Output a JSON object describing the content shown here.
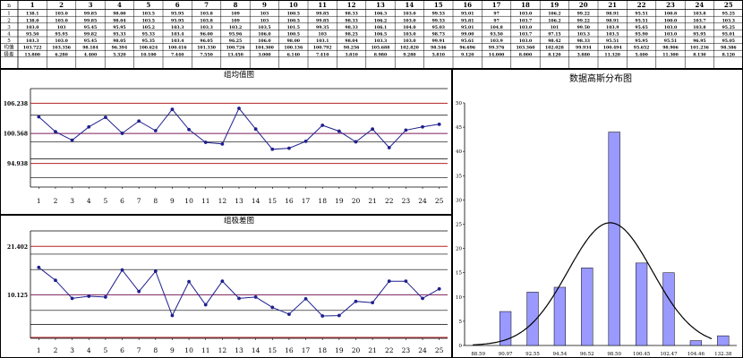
{
  "table": {
    "corner": "n",
    "columns": [
      "1",
      "2",
      "3",
      "4",
      "5",
      "6",
      "7",
      "8",
      "9",
      "10",
      "11",
      "12",
      "13",
      "14",
      "15",
      "16",
      "17",
      "18",
      "19",
      "20",
      "21",
      "22",
      "23",
      "24",
      "25"
    ],
    "row_labels": [
      "1",
      "2",
      "3",
      "4",
      "5",
      "均值",
      "极差"
    ],
    "rows": [
      [
        "138.1",
        "103.0",
        "99.85",
        "98.00",
        "103.5",
        "95.95",
        "103.8",
        "109",
        "103",
        "100.5",
        "99.85",
        "98.33",
        "106.3",
        "103.0",
        "99.53",
        "95.01",
        "97",
        "103.0",
        "106.2",
        "99.22",
        "98.91",
        "95.51",
        "100.8",
        "103.8",
        "95.25"
      ],
      [
        "138.0",
        "103.0",
        "99.85",
        "98.04",
        "103.5",
        "95.95",
        "103.8",
        "109",
        "103",
        "100.5",
        "99.85",
        "98.33",
        "106.2",
        "103.0",
        "99.53",
        "95.81",
        "97",
        "103.7",
        "106.2",
        "99.22",
        "98.91",
        "95.51",
        "100.0",
        "103.7",
        "103.3"
      ],
      [
        "103.0",
        "103",
        "95.45",
        "95.95",
        "105.2",
        "103.3",
        "103.3",
        "103.2",
        "103.5",
        "101.5",
        "99.35",
        "98.33",
        "106.1",
        "104.0",
        "95.03",
        "95.01",
        "104.8",
        "103.0",
        "101",
        "99.50",
        "103.9",
        "95.65",
        "103.0",
        "103.8",
        "95.25"
      ],
      [
        "95.50",
        "95.95",
        "99.82",
        "95.33",
        "95.33",
        "103.4",
        "96.00",
        "95.96",
        "106.0",
        "100.5",
        "103",
        "98.25",
        "106.5",
        "103.0",
        "98.73",
        "99.00",
        "93.50",
        "103.7",
        "97.15",
        "103.3",
        "103.5",
        "95.90",
        "103.0",
        "95.95",
        "95.01"
      ],
      [
        "103.3",
        "103.0",
        "95.45",
        "98.05",
        "95.35",
        "103.4",
        "96.05",
        "96.25",
        "106.0",
        "98.00",
        "103.1",
        "98.04",
        "103.3",
        "103.0",
        "99.91",
        "95.61",
        "103.9",
        "103.0",
        "98.42",
        "98.33",
        "95.51",
        "95.95",
        "95.51",
        "96.95",
        "95.05"
      ],
      [
        "103.722",
        "103.356",
        "98.184",
        "96.394",
        "100.624",
        "100.416",
        "101.330",
        "100.726",
        "104.300",
        "100.136",
        "100.792",
        "98.256",
        "105.688",
        "102.820",
        "98.546",
        "96.696",
        "99.376",
        "103.360",
        "102.028",
        "99.934",
        "100.494",
        "95.652",
        "98.906",
        "101.236",
        "98.386"
      ],
      [
        "13.800",
        "6.280",
        "4.400",
        "5.320",
        "10.100",
        "7.440",
        "7.550",
        "13.450",
        "3.000",
        "6.140",
        "7.410",
        "3.810",
        "8.980",
        "9.280",
        "5.810",
        "9.120",
        "14.000",
        "8.000",
        "8.120",
        "3.880",
        "11.320",
        "5.400",
        "11.300",
        "8.130",
        "8.120"
      ]
    ]
  },
  "xbar_chart": {
    "title": "组均值图",
    "ucl_label": "106.238",
    "cl_label": "100.568",
    "lcl_label": "94.938",
    "ucl": 106.238,
    "cl": 100.568,
    "lcl": 94.938,
    "ylim": [
      90.5,
      109.0
    ],
    "x_ticks": [
      "1",
      "2",
      "3",
      "4",
      "5",
      "6",
      "7",
      "8",
      "9",
      "10",
      "11",
      "12",
      "13",
      "14",
      "15",
      "16",
      "17",
      "18",
      "19",
      "20",
      "21",
      "22",
      "23",
      "24",
      "25"
    ],
    "values": [
      103.7,
      100.9,
      99.3,
      101.8,
      103.6,
      100.6,
      102.9,
      101.1,
      105.1,
      101.3,
      98.9,
      98.6,
      105.3,
      101.4,
      97.6,
      97.8,
      99.1,
      102.1,
      101.0,
      99.0,
      101.4,
      97.9,
      101.2,
      101.8,
      102.3
    ],
    "colors": {
      "line": "#1f1f8f",
      "limit": "#b22222",
      "center": "#7a1f5a",
      "grid": "#000000"
    }
  },
  "range_chart": {
    "title": "组极差图",
    "ucl_label": "21.402",
    "cl_label": "10.125",
    "ucl": 21.402,
    "cl": 10.125,
    "ylim": [
      0,
      25.0
    ],
    "x_ticks": [
      "1",
      "2",
      "3",
      "4",
      "5",
      "6",
      "7",
      "8",
      "9",
      "10",
      "11",
      "12",
      "13",
      "14",
      "15",
      "16",
      "17",
      "18",
      "19",
      "20",
      "21",
      "22",
      "23",
      "24",
      "25"
    ],
    "values": [
      16.5,
      13.5,
      9.3,
      9.8,
      9.6,
      15.9,
      10.9,
      15.6,
      5.3,
      13.2,
      7.8,
      13.3,
      9.3,
      9.6,
      7.2,
      5.6,
      9.2,
      5.2,
      5.3,
      8.6,
      8.3,
      13.3,
      13.3,
      9.3,
      11.5
    ],
    "colors": {
      "line": "#1f1f8f",
      "limit": "#b22222",
      "center": "#7a1f5a"
    }
  },
  "chart_data": {
    "type": "bar",
    "title": "数据高斯分布图",
    "categories": [
      "88.59",
      "90.97",
      "92.55",
      "94.54",
      "96.52",
      "98.50",
      "100.45",
      "102.47",
      "104.46",
      "132.38"
    ],
    "values": [
      0,
      7,
      11,
      12,
      16,
      44,
      17,
      15,
      1,
      2
    ],
    "ylim": [
      0,
      50
    ],
    "y_ticks": [
      "0",
      "5",
      "10",
      "15",
      "20",
      "25",
      "30",
      "35",
      "40",
      "45",
      "50"
    ],
    "curve_peak": 25.3,
    "bar_color": "#9999ff",
    "curve_color": "#000000"
  }
}
